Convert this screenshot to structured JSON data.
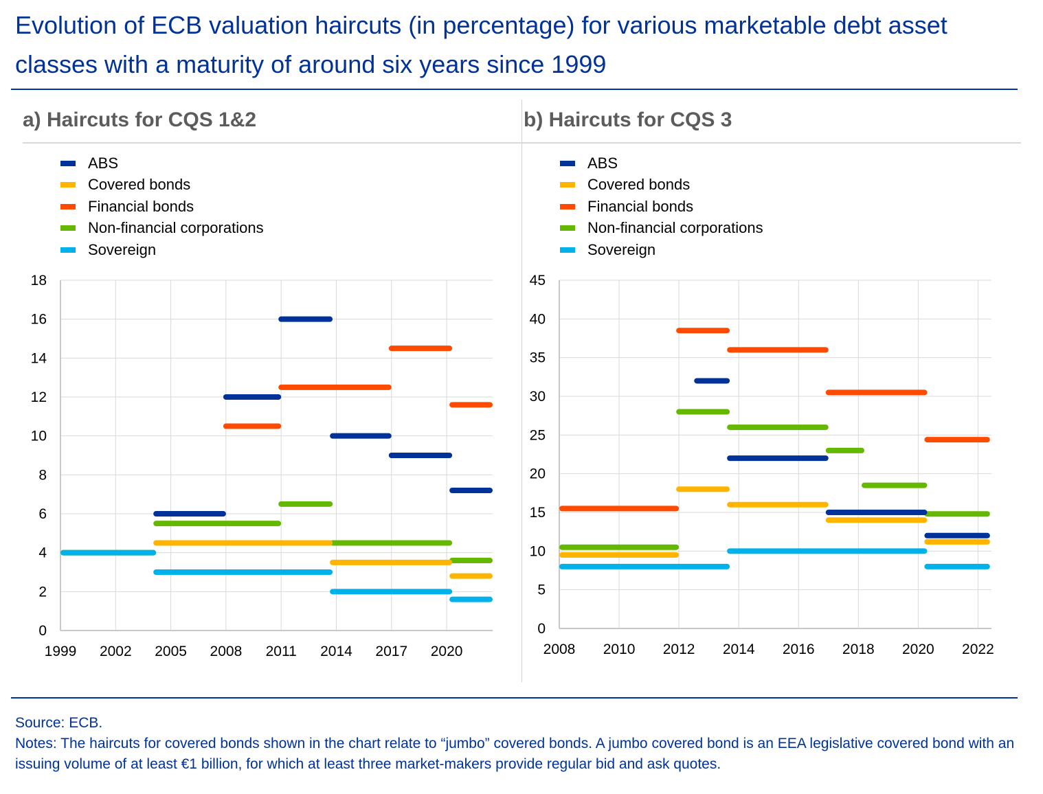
{
  "title": "Evolution of ECB valuation haircuts (in percentage) for various marketable debt asset classes with a maturity of around six years since 1999",
  "source": "Source: ECB.",
  "notes": "Notes: The haircuts for covered bonds shown in the chart relate to “jumbo” covered bonds. A jumbo covered bond is an EEA legislative covered bond with an issuing volume of at least €1 billion, for which at least three market-makers provide regular bid and ask quotes.",
  "colors": {
    "ABS": "#003299",
    "Covered bonds": "#ffb400",
    "Financial bonds": "#ff4b00",
    "Non-financial corporations": "#65b800",
    "Sovereign": "#00b1ea"
  },
  "chart_data": [
    {
      "type": "line",
      "title": "a) Haircuts for CQS 1&2",
      "legend_position": "top-left",
      "xlim": [
        1999,
        2022.5
      ],
      "ylim": [
        0,
        18
      ],
      "xticks": [
        1999,
        2002,
        2005,
        2008,
        2011,
        2014,
        2017,
        2020
      ],
      "yticks": [
        0,
        2,
        4,
        6,
        8,
        10,
        12,
        14,
        16,
        18
      ],
      "grid": true,
      "series": [
        {
          "name": "Non-financial corporations",
          "segments": [
            [
              1999,
              2004.2,
              4
            ],
            [
              2004.2,
              2011,
              5.5
            ],
            [
              2011,
              2013.8,
              6.5
            ],
            [
              2013.8,
              2020.3,
              4.5
            ],
            [
              2020.3,
              2022.5,
              3.6
            ]
          ]
        },
        {
          "name": "Covered bonds",
          "segments": [
            [
              1999,
              2004.2,
              4
            ],
            [
              2004.2,
              2013.8,
              4.5
            ],
            [
              2013.8,
              2020.3,
              3.5
            ],
            [
              2020.3,
              2022.5,
              2.8
            ]
          ]
        },
        {
          "name": "Sovereign",
          "segments": [
            [
              1999,
              2004.2,
              4
            ],
            [
              2004.2,
              2013.8,
              3
            ],
            [
              2013.8,
              2020.3,
              2
            ],
            [
              2020.3,
              2022.5,
              1.6
            ]
          ]
        },
        {
          "name": "Financial bonds",
          "segments": [
            [
              2008,
              2011,
              10.5
            ],
            [
              2011,
              2017,
              12.5
            ],
            [
              2017,
              2020.3,
              14.5
            ],
            [
              2020.3,
              2022.5,
              11.6
            ]
          ]
        },
        {
          "name": "ABS",
          "segments": [
            [
              2004.2,
              2008,
              6
            ],
            [
              2008,
              2011,
              12
            ],
            [
              2011,
              2013.8,
              16
            ],
            [
              2013.8,
              2017,
              10
            ],
            [
              2017,
              2020.3,
              9
            ],
            [
              2020.3,
              2022.5,
              7.2
            ]
          ]
        }
      ]
    },
    {
      "type": "line",
      "title": "b) Haircuts for CQS 3",
      "legend_position": "top-left",
      "xlim": [
        2008,
        2022.45
      ],
      "ylim": [
        0,
        45
      ],
      "xticks": [
        2008,
        2010,
        2012,
        2014,
        2016,
        2018,
        2020,
        2022
      ],
      "yticks": [
        0,
        5,
        10,
        15,
        20,
        25,
        30,
        35,
        40,
        45
      ],
      "grid": true,
      "series": [
        {
          "name": "Financial bonds",
          "segments": [
            [
              2008,
              2012,
              15.5
            ],
            [
              2012,
              2013.7,
              38.5
            ],
            [
              2013.7,
              2017,
              36
            ],
            [
              2017,
              2020.3,
              30.5
            ],
            [
              2020.3,
              2022.4,
              24.4
            ]
          ]
        },
        {
          "name": "Non-financial corporations",
          "segments": [
            [
              2008,
              2012,
              10.5
            ],
            [
              2012,
              2013.7,
              28
            ],
            [
              2013.7,
              2017,
              26
            ],
            [
              2017,
              2018.2,
              23
            ],
            [
              2018.2,
              2020.3,
              18.5
            ],
            [
              2020.3,
              2022.4,
              14.8
            ]
          ]
        },
        {
          "name": "Covered bonds",
          "segments": [
            [
              2008,
              2012,
              9.5
            ],
            [
              2012,
              2013.7,
              18
            ],
            [
              2013.7,
              2017,
              16
            ],
            [
              2017,
              2020.3,
              14
            ],
            [
              2020.3,
              2022.4,
              11.2
            ]
          ]
        },
        {
          "name": "ABS",
          "segments": [
            [
              2012.6,
              2013.7,
              32
            ],
            [
              2013.7,
              2017,
              22
            ],
            [
              2017,
              2020.3,
              15
            ],
            [
              2020.3,
              2022.4,
              12
            ]
          ]
        },
        {
          "name": "Sovereign",
          "segments": [
            [
              2008,
              2013.7,
              8
            ],
            [
              2013.7,
              2020.3,
              10
            ],
            [
              2020.3,
              2022.4,
              8
            ]
          ]
        }
      ]
    }
  ],
  "legend": [
    "ABS",
    "Covered bonds",
    "Financial bonds",
    "Non-financial corporations",
    "Sovereign"
  ]
}
